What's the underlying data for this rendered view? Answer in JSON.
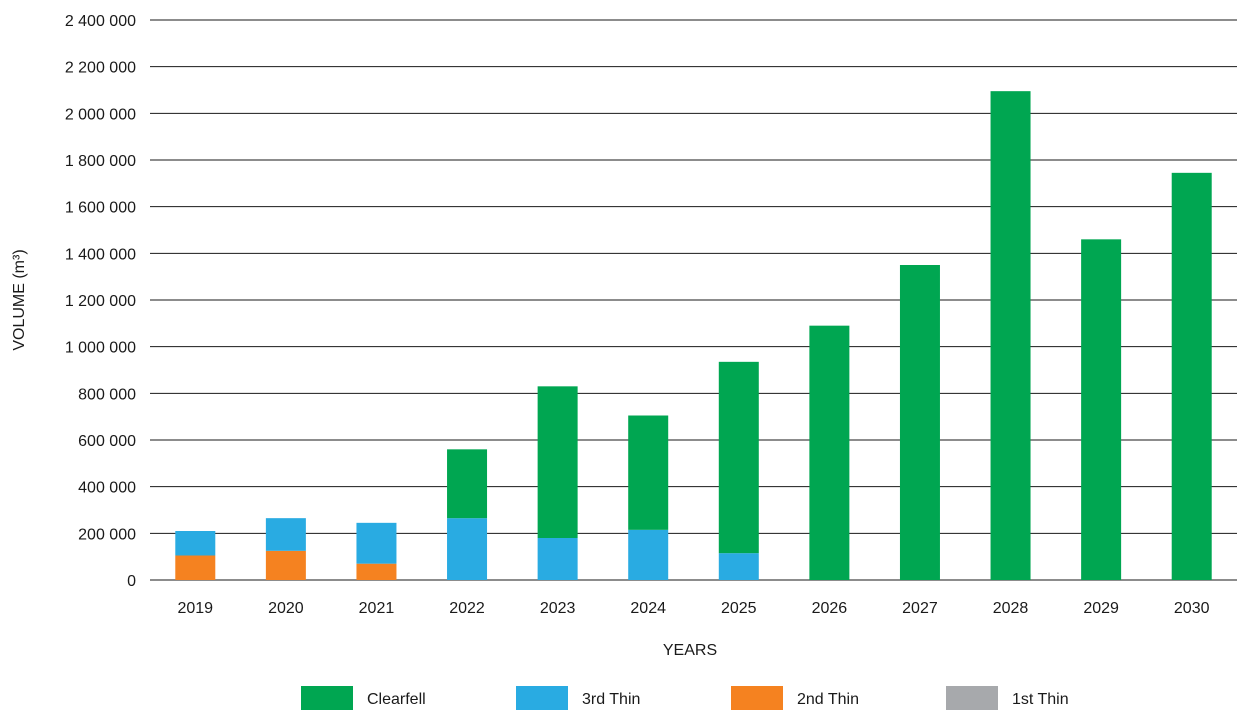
{
  "chart_data": {
    "type": "bar",
    "stacked": true,
    "categories": [
      "2019",
      "2020",
      "2021",
      "2022",
      "2023",
      "2024",
      "2025",
      "2026",
      "2027",
      "2028",
      "2029",
      "2030"
    ],
    "series": [
      {
        "name": "1st Thin",
        "color": "#a7a9ac",
        "values": [
          0,
          0,
          0,
          0,
          0,
          0,
          0,
          0,
          0,
          0,
          0,
          0
        ]
      },
      {
        "name": "2nd Thin",
        "color": "#f58220",
        "values": [
          105000,
          125000,
          70000,
          0,
          0,
          0,
          0,
          0,
          0,
          0,
          0,
          0
        ]
      },
      {
        "name": "3rd Thin",
        "color": "#29abe2",
        "values": [
          105000,
          140000,
          175000,
          265000,
          180000,
          215000,
          115000,
          0,
          0,
          0,
          0,
          0
        ]
      },
      {
        "name": "Clearfell",
        "color": "#00a651",
        "values": [
          0,
          0,
          0,
          295000,
          650000,
          490000,
          820000,
          1090000,
          1350000,
          2095000,
          1460000,
          1745000
        ]
      }
    ],
    "legend_order": [
      "Clearfell",
      "3rd Thin",
      "2nd Thin",
      "1st Thin"
    ],
    "yticks": [
      "0",
      "200 000",
      "400 000",
      "600 000",
      "800 000",
      "1 000 000",
      "1 200 000",
      "1 400 000",
      "1 600 000",
      "1 800 000",
      "2 000 000",
      "2 200 000",
      "2 400 000"
    ],
    "ylim": [
      0,
      2400000
    ],
    "xlabel": "YEARS",
    "ylabel": "VOLUME (m³)",
    "grid": true,
    "legend_position": "bottom"
  }
}
